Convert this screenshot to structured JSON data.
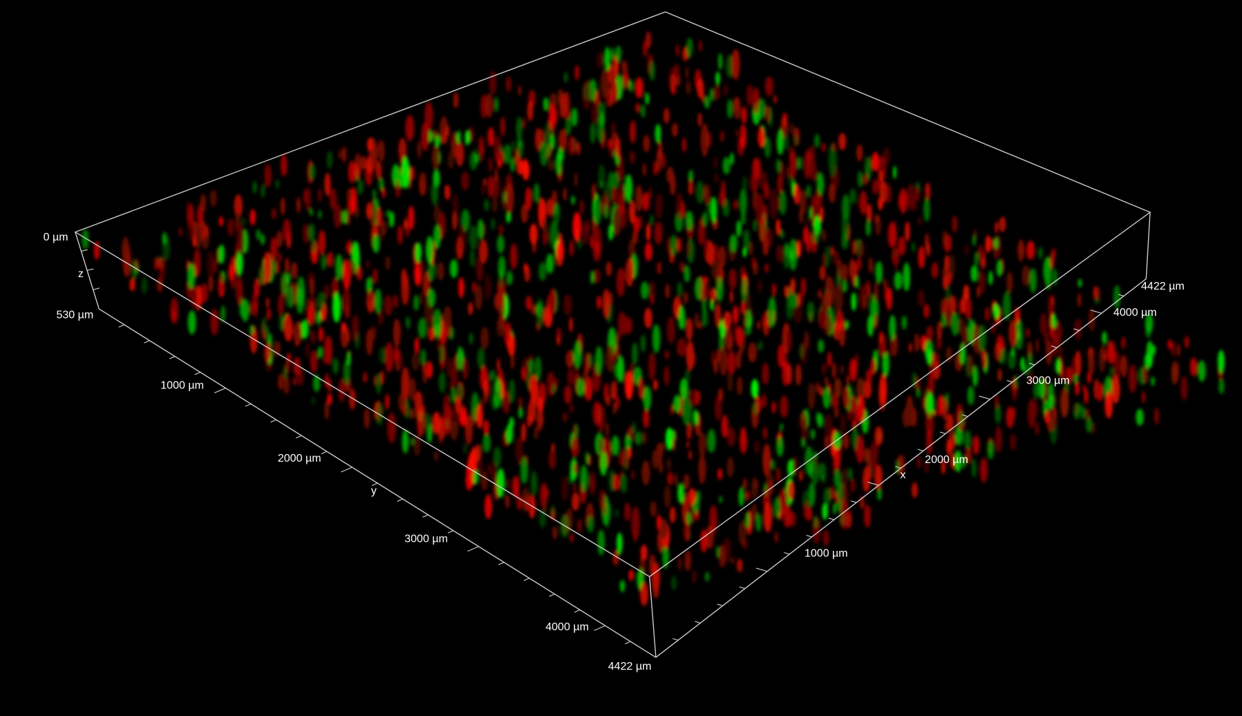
{
  "axes": {
    "z": {
      "name": "z",
      "labels": [
        "0 µm",
        "530 µm"
      ]
    },
    "y": {
      "name": "y",
      "labels": [
        "1000 µm",
        "2000 µm",
        "3000 µm",
        "4000 µm",
        "4422 µm"
      ]
    },
    "x": {
      "name": "x",
      "labels": [
        "1000 µm",
        "2000 µm",
        "3000 µm",
        "4000 µm",
        "4422 µm"
      ]
    }
  }
}
